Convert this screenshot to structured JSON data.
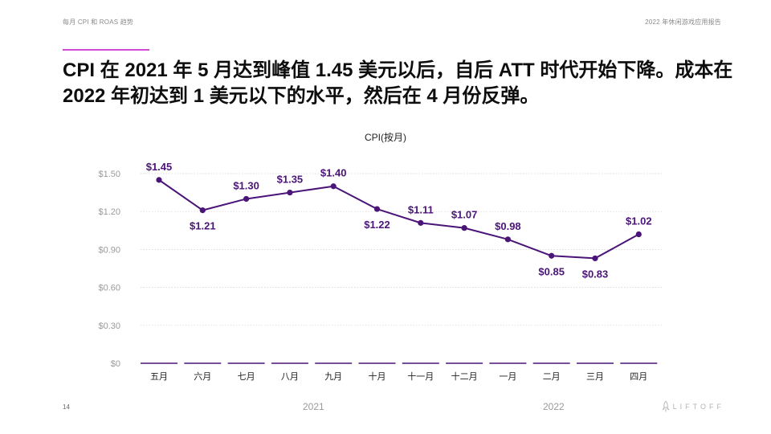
{
  "header": {
    "left": "每月 CPI 和 ROAS 趋势",
    "right": "2022 年休闲游戏应用报告"
  },
  "headline": "CPI 在 2021 年 5 月达到峰值 1.45 美元以后，自后 ATT 时代开始下降。成本在 2022 年初达到 1 美元以下的水平，然后在 4 月份反弹。",
  "footer": {
    "page_number": "14",
    "year_2021": "2021",
    "year_2022": "2022",
    "logo_text": "LIFTOFF",
    "logo_icon": "rocket-icon"
  },
  "colors": {
    "line": "#4a1478",
    "axis_label": "#9a9a9a",
    "grid": "#d0d0d0",
    "accent": "#d24bd8"
  },
  "chart_data": {
    "type": "line",
    "title": "CPI(按月)",
    "categories": [
      "五月",
      "六月",
      "七月",
      "八月",
      "九月",
      "十月",
      "十一月",
      "十二月",
      "一月",
      "二月",
      "三月",
      "四月"
    ],
    "values": [
      1.45,
      1.21,
      1.3,
      1.35,
      1.4,
      1.22,
      1.11,
      1.07,
      0.98,
      0.85,
      0.83,
      1.02
    ],
    "data_labels": [
      "$1.45",
      "$1.21",
      "$1.30",
      "$1.35",
      "$1.40",
      "$1.22",
      "$1.11",
      "$1.07",
      "$0.98",
      "$0.85",
      "$0.83",
      "$1.02"
    ],
    "label_positions": [
      "above",
      "below",
      "above",
      "above",
      "above",
      "below",
      "above",
      "above",
      "above",
      "below",
      "below",
      "above"
    ],
    "y_ticks": [
      0,
      0.3,
      0.6,
      0.9,
      1.2,
      1.5
    ],
    "y_tick_labels": [
      "$0",
      "$0.30",
      "$0.60",
      "$0.90",
      "$1.20",
      "$1.50"
    ],
    "ylim": [
      0,
      1.5
    ],
    "xlabel": "",
    "ylabel": "",
    "grid": true,
    "year_groups": [
      {
        "label": "2021",
        "categories": [
          "五月",
          "六月",
          "七月",
          "八月",
          "九月",
          "十月",
          "十一月",
          "十二月"
        ]
      },
      {
        "label": "2022",
        "categories": [
          "一月",
          "二月",
          "三月",
          "四月"
        ]
      }
    ]
  }
}
